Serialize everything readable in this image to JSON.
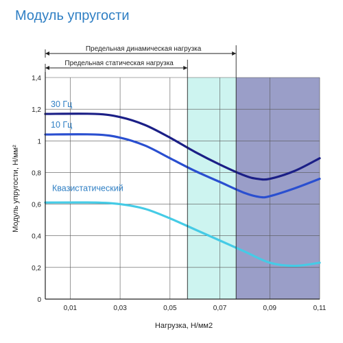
{
  "title": "Модуль упругости",
  "chart_data": {
    "type": "line",
    "title": "Модуль упругости",
    "xlabel": "Нагрузка, Н/мм2",
    "ylabel": "Модуль упругости, Н/мм²",
    "xlim": [
      0.0,
      0.11
    ],
    "ylim": [
      0,
      1.4
    ],
    "xticks": [
      "0,01",
      "0,03",
      "0,05",
      "0,07",
      "0,09",
      "0,11"
    ],
    "xtick_values": [
      0.01,
      0.03,
      0.05,
      0.07,
      0.09,
      0.11
    ],
    "yticks": [
      "0",
      "0,2",
      "0,4",
      "0,6",
      "0,8",
      "1",
      "1,2",
      "1,4"
    ],
    "ytick_values": [
      0,
      0.2,
      0.4,
      0.6,
      0.8,
      1.0,
      1.2,
      1.4
    ],
    "grid": true,
    "regions": [
      {
        "from": 0.057,
        "to": 0.0765,
        "color": "#cdf4f0"
      },
      {
        "from": 0.0765,
        "to": 0.11,
        "color": "#9a9ec8"
      }
    ],
    "annotations": [
      {
        "text": "Предельная динамическая нагрузка",
        "from": 0.0,
        "to": 0.0765
      },
      {
        "text": "Предельная статическая нагрузка",
        "from": 0.0,
        "to": 0.057
      }
    ],
    "series": [
      {
        "name": "30 Гц",
        "color": "#1b1f86",
        "label_color": "#2f7fc4",
        "x": [
          0.0,
          0.02,
          0.03,
          0.04,
          0.05,
          0.06,
          0.07,
          0.08,
          0.085,
          0.09,
          0.1,
          0.11
        ],
        "y": [
          1.17,
          1.17,
          1.15,
          1.1,
          1.02,
          0.93,
          0.85,
          0.78,
          0.76,
          0.76,
          0.81,
          0.89
        ]
      },
      {
        "name": "10 Гц",
        "color": "#2a4fd0",
        "label_color": "#2f7fc4",
        "x": [
          0.0,
          0.02,
          0.03,
          0.04,
          0.05,
          0.06,
          0.07,
          0.08,
          0.086,
          0.09,
          0.1,
          0.11
        ],
        "y": [
          1.04,
          1.04,
          1.02,
          0.97,
          0.89,
          0.81,
          0.74,
          0.67,
          0.645,
          0.65,
          0.7,
          0.76
        ]
      },
      {
        "name": "Квазистатический",
        "color": "#45cbe6",
        "label_color": "#2f7fc4",
        "x": [
          0.0,
          0.02,
          0.03,
          0.04,
          0.05,
          0.06,
          0.07,
          0.08,
          0.09,
          0.1,
          0.11
        ],
        "y": [
          0.61,
          0.61,
          0.6,
          0.57,
          0.51,
          0.44,
          0.37,
          0.3,
          0.23,
          0.21,
          0.23
        ]
      }
    ]
  }
}
